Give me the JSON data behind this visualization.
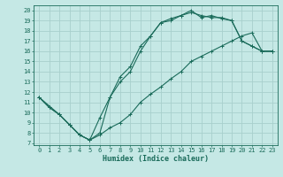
{
  "xlabel": "Humidex (Indice chaleur)",
  "bg_color": "#c5e8e5",
  "grid_color": "#a8d0cc",
  "line_color": "#1a6b5a",
  "xlim": [
    -0.5,
    23.5
  ],
  "ylim": [
    6.8,
    20.5
  ],
  "xticks": [
    0,
    1,
    2,
    3,
    4,
    5,
    6,
    7,
    8,
    9,
    10,
    11,
    12,
    13,
    14,
    15,
    16,
    17,
    18,
    19,
    20,
    21,
    22,
    23
  ],
  "yticks": [
    7,
    8,
    9,
    10,
    11,
    12,
    13,
    14,
    15,
    16,
    17,
    18,
    19,
    20
  ],
  "line1_x": [
    0,
    1,
    2,
    3,
    4,
    5,
    6,
    7,
    8,
    9,
    10,
    11,
    12,
    13,
    14,
    15,
    16,
    17,
    18,
    19,
    20,
    21,
    22,
    23
  ],
  "line1_y": [
    11.5,
    10.5,
    9.8,
    8.8,
    7.8,
    7.3,
    7.8,
    8.5,
    9.0,
    9.8,
    11.0,
    11.8,
    12.5,
    13.3,
    14.0,
    15.0,
    15.5,
    16.0,
    16.5,
    17.0,
    17.5,
    17.8,
    16.0,
    16.0
  ],
  "line2_x": [
    0,
    1,
    2,
    3,
    4,
    5,
    6,
    7,
    8,
    9,
    10,
    11,
    12,
    13,
    14,
    15,
    16,
    17,
    18,
    19,
    20,
    21,
    22,
    23
  ],
  "line2_y": [
    11.5,
    10.5,
    9.8,
    8.8,
    7.8,
    7.3,
    9.5,
    11.5,
    13.5,
    14.5,
    16.5,
    17.5,
    18.8,
    19.2,
    19.5,
    20.0,
    19.3,
    19.5,
    19.2,
    19.0,
    17.0,
    16.5,
    16.0,
    16.0
  ],
  "line3_x": [
    0,
    2,
    3,
    4,
    5,
    6,
    7,
    8,
    9,
    10,
    11,
    12,
    13,
    14,
    15,
    16,
    17,
    18,
    19,
    20,
    21,
    22,
    23
  ],
  "line3_y": [
    11.5,
    9.8,
    8.8,
    7.8,
    7.3,
    8.0,
    11.5,
    13.0,
    14.0,
    16.0,
    17.5,
    18.8,
    19.0,
    19.5,
    19.8,
    19.5,
    19.3,
    19.3,
    19.0,
    17.0,
    16.5,
    16.0,
    16.0
  ]
}
